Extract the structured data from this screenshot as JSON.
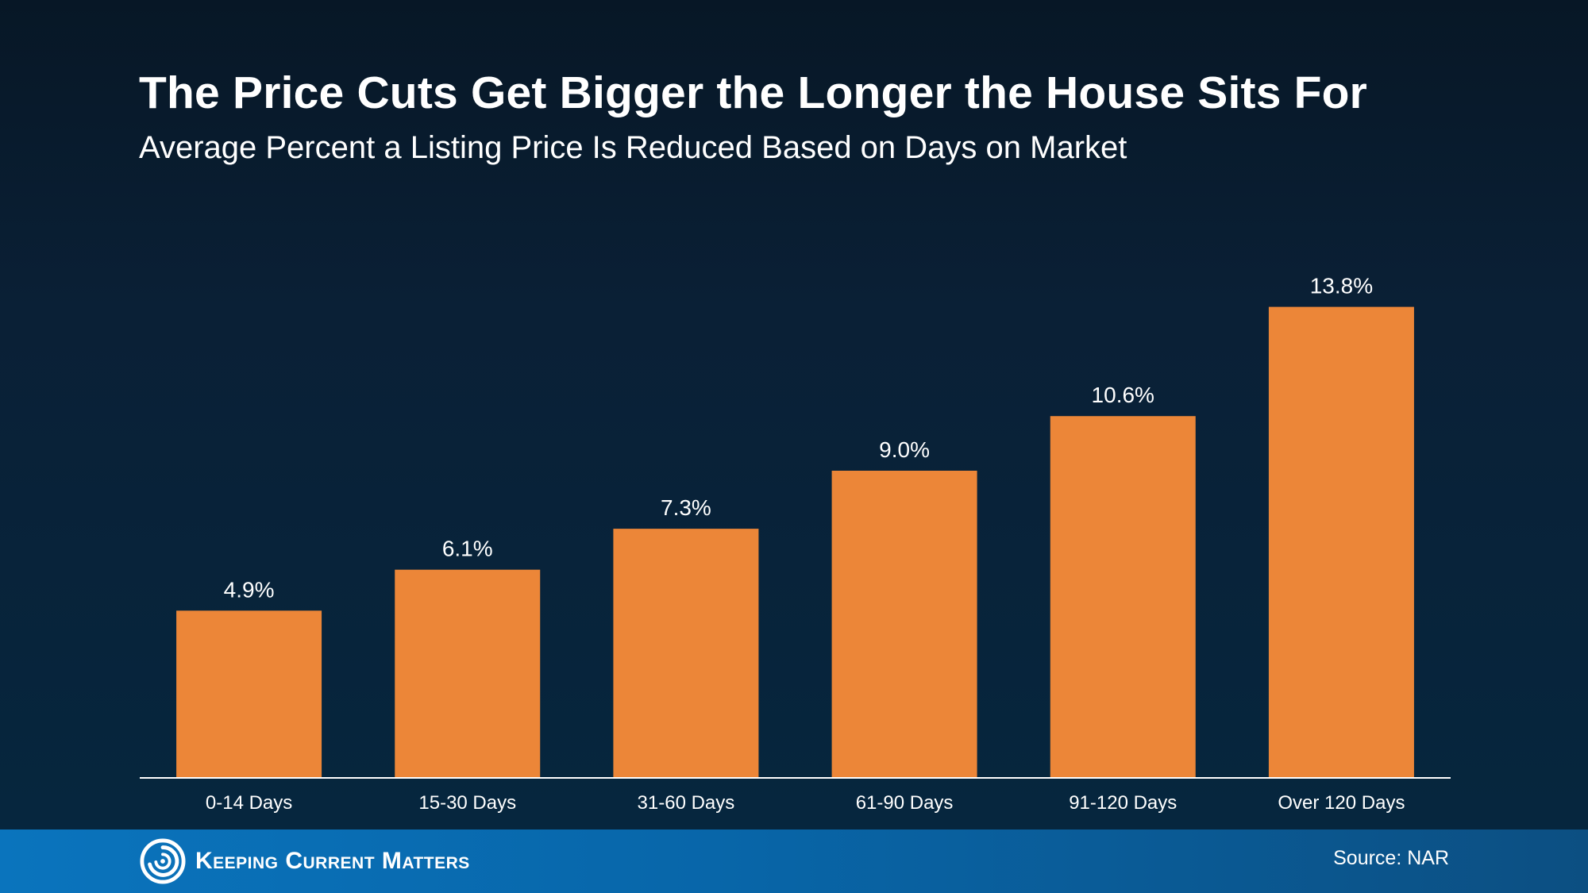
{
  "header": {
    "title": "The Price Cuts Get Bigger the Longer the House Sits For",
    "subtitle": "Average Percent a Listing Price Is Reduced Based on Days on Market"
  },
  "chart_data": {
    "type": "bar",
    "title": "The Price Cuts Get Bigger the Longer the House Sits For",
    "subtitle": "Average Percent a Listing Price Is Reduced Based on Days on Market",
    "xlabel": "",
    "ylabel": "",
    "categories": [
      "0-14 Days",
      "15-30 Days",
      "31-60 Days",
      "61-90 Days",
      "91-120 Days",
      "Over 120 Days"
    ],
    "values": [
      4.9,
      6.1,
      7.3,
      9.0,
      10.6,
      13.8
    ],
    "data_labels": [
      "4.9%",
      "6.1%",
      "7.3%",
      "9.0%",
      "10.6%",
      "13.8%"
    ],
    "ylim": [
      0,
      16
    ],
    "grid": false,
    "legend": "none",
    "bar_color": "#ec8638",
    "axis_color": "#ffffff"
  },
  "footer": {
    "brand": "Keeping Current Matters",
    "source": "Source: NAR",
    "logo_icon": "swirl-logo-icon",
    "colors": {
      "band_start": "#0a74bd",
      "band_end": "#0c4f82"
    }
  }
}
